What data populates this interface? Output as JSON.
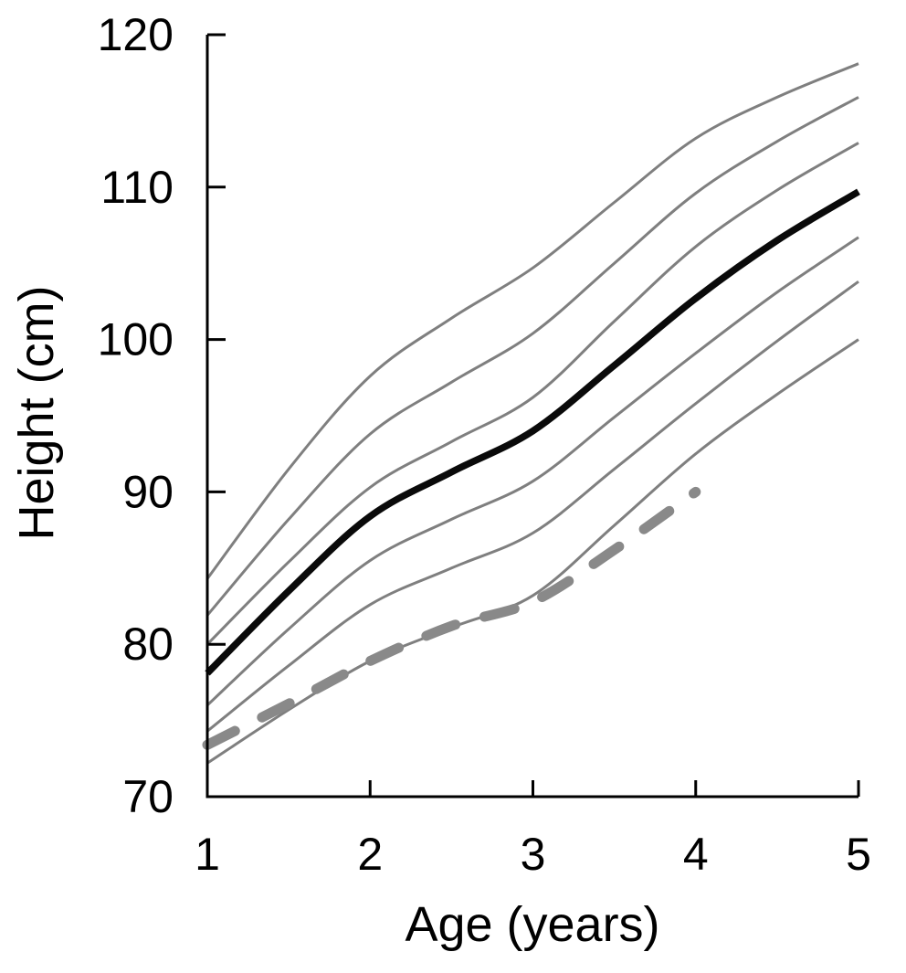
{
  "figure": {
    "background": "#ffffff",
    "axis_color": "#000000",
    "tick_label_font_px": 50,
    "axis_label_font_px": 54
  },
  "chart_data": {
    "type": "line",
    "title": "",
    "xlabel": "Age (years)",
    "ylabel": "Height (cm)",
    "xlim": [
      1,
      5
    ],
    "ylim": [
      70,
      120
    ],
    "xticks": [
      1,
      2,
      3,
      4,
      5
    ],
    "yticks": [
      70,
      80,
      90,
      100,
      110,
      120
    ],
    "grid": false,
    "legend": "none",
    "x": [
      1,
      1.5,
      2,
      2.5,
      3,
      3.5,
      4,
      4.5,
      5
    ],
    "series": [
      {
        "name": "percentile-upper-3",
        "role": "reference-curve",
        "style": "solid",
        "color": "#7f7f7f",
        "width": 3,
        "values": [
          84.3,
          91.5,
          97.6,
          101.4,
          104.7,
          109.0,
          113.2,
          115.9,
          118.1
        ]
      },
      {
        "name": "percentile-upper-2",
        "role": "reference-curve",
        "style": "solid",
        "color": "#7f7f7f",
        "width": 3,
        "values": [
          81.9,
          88.2,
          93.8,
          97.2,
          100.4,
          105.0,
          109.6,
          113.0,
          115.9
        ]
      },
      {
        "name": "percentile-upper-1",
        "role": "reference-curve",
        "style": "solid",
        "color": "#7f7f7f",
        "width": 3,
        "values": [
          80.0,
          85.4,
          90.3,
          93.3,
          96.2,
          101.2,
          106.1,
          109.8,
          112.9
        ]
      },
      {
        "name": "median-curve",
        "role": "median",
        "style": "solid",
        "color": "#0a0a0a",
        "width": 7.5,
        "values": [
          78.1,
          83.5,
          88.4,
          91.3,
          94.0,
          98.3,
          102.7,
          106.5,
          109.7
        ]
      },
      {
        "name": "percentile-lower-1",
        "role": "reference-curve",
        "style": "solid",
        "color": "#7f7f7f",
        "width": 3,
        "values": [
          76.0,
          81.0,
          85.5,
          88.2,
          90.7,
          94.9,
          99.1,
          103.1,
          106.7
        ]
      },
      {
        "name": "percentile-lower-2",
        "role": "reference-curve",
        "style": "solid",
        "color": "#7f7f7f",
        "width": 3,
        "values": [
          74.3,
          78.6,
          82.6,
          85.0,
          87.3,
          91.5,
          95.8,
          99.9,
          103.8
        ]
      },
      {
        "name": "percentile-lower-3",
        "role": "reference-curve",
        "style": "solid",
        "color": "#7f7f7f",
        "width": 3,
        "values": [
          72.2,
          75.7,
          78.9,
          81.1,
          83.2,
          87.8,
          92.5,
          96.4,
          100.0
        ]
      },
      {
        "name": "patient-trajectory",
        "role": "measured-curve",
        "style": "dashed",
        "color": "#898989",
        "width": 11,
        "values": [
          73.4,
          76.1,
          78.9,
          81.2,
          82.8,
          86.2,
          90.0,
          null,
          null
        ]
      }
    ]
  }
}
